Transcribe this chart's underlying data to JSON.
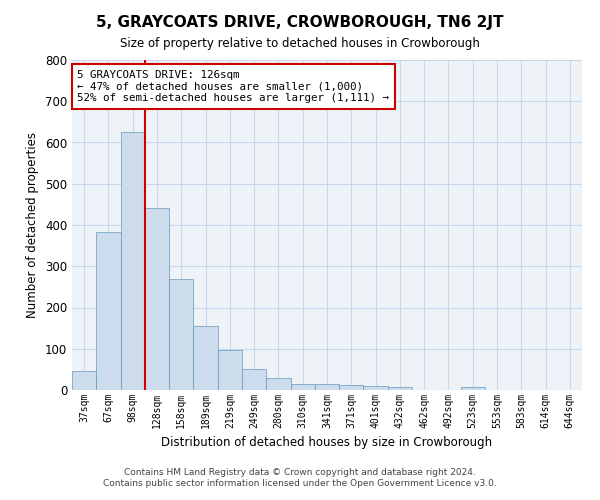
{
  "title": "5, GRAYCOATS DRIVE, CROWBOROUGH, TN6 2JT",
  "subtitle": "Size of property relative to detached houses in Crowborough",
  "xlabel": "Distribution of detached houses by size in Crowborough",
  "ylabel": "Number of detached properties",
  "categories": [
    "37sqm",
    "67sqm",
    "98sqm",
    "128sqm",
    "158sqm",
    "189sqm",
    "219sqm",
    "249sqm",
    "280sqm",
    "310sqm",
    "341sqm",
    "371sqm",
    "401sqm",
    "432sqm",
    "462sqm",
    "492sqm",
    "523sqm",
    "553sqm",
    "583sqm",
    "614sqm",
    "644sqm"
  ],
  "values": [
    47,
    383,
    625,
    440,
    270,
    155,
    97,
    52,
    28,
    15,
    15,
    12,
    10,
    8,
    0,
    0,
    8,
    0,
    0,
    0,
    0
  ],
  "bar_color": "#ccdcec",
  "bar_edge_color": "#6699bb",
  "red_line_index": 2.5,
  "annotation_line1": "5 GRAYCOATS DRIVE: 126sqm",
  "annotation_line2": "← 47% of detached houses are smaller (1,000)",
  "annotation_line3": "52% of semi-detached houses are larger (1,111) →",
  "annotation_box_color": "#ffffff",
  "annotation_box_edge": "#cc0000",
  "red_line_color": "#cc0000",
  "grid_color": "#c8d8ec",
  "background_color": "#eef3f8",
  "footer_line1": "Contains HM Land Registry data © Crown copyright and database right 2024.",
  "footer_line2": "Contains public sector information licensed under the Open Government Licence v3.0.",
  "ylim": [
    0,
    800
  ],
  "yticks": [
    0,
    100,
    200,
    300,
    400,
    500,
    600,
    700,
    800
  ]
}
